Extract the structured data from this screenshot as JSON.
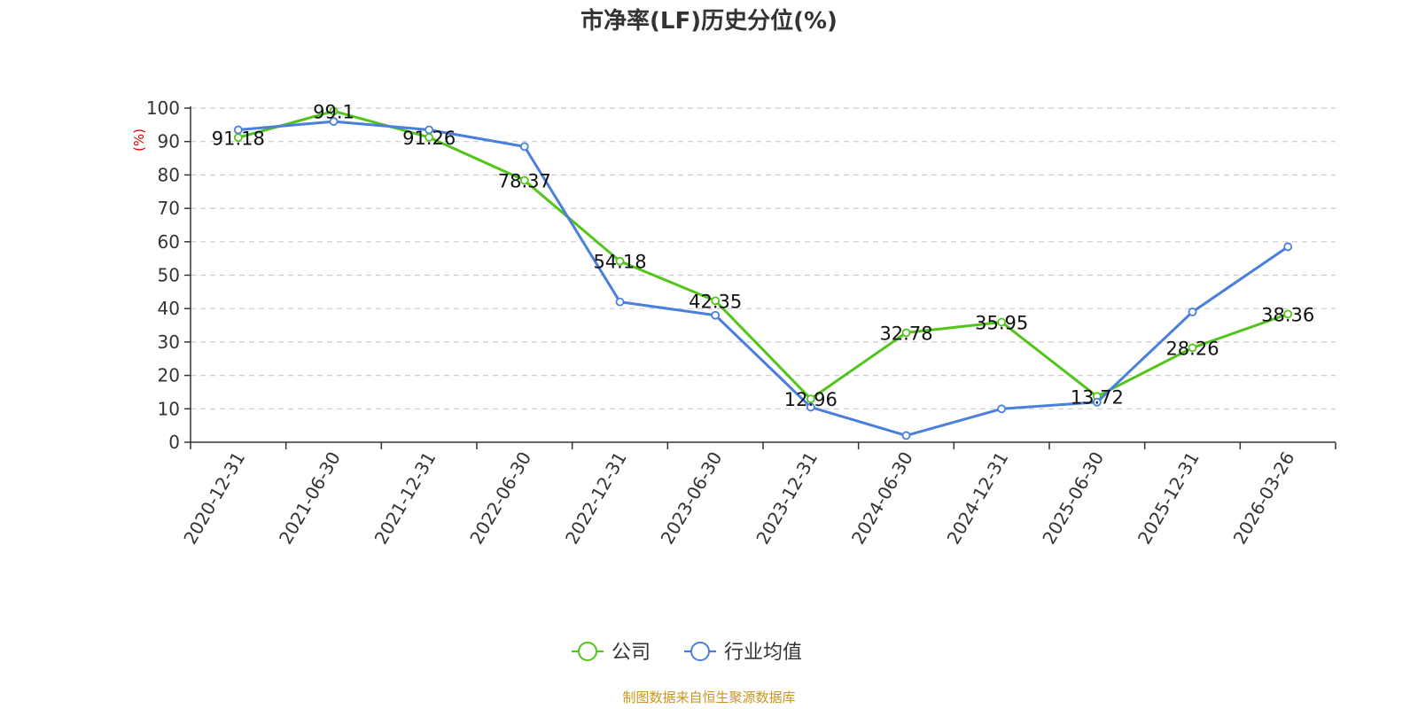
{
  "chart_data": {
    "type": "line",
    "title": "市净率(LF)历史分位(%)",
    "ylabel": "(%)",
    "ylim": [
      0,
      100
    ],
    "yticks": [
      0,
      10,
      20,
      30,
      40,
      50,
      60,
      70,
      80,
      90,
      100
    ],
    "categories": [
      "2020-12-31",
      "2021-06-30",
      "2021-12-31",
      "2022-06-30",
      "2022-12-31",
      "2023-06-30",
      "2023-12-31",
      "2024-06-30",
      "2024-12-31",
      "2025-06-30",
      "2025-12-31",
      "2026-03-26"
    ],
    "grid": true,
    "legend_position": "bottom-center",
    "series": [
      {
        "name": "公司",
        "color": "#52c41a",
        "values": [
          91.18,
          99.1,
          91.26,
          78.37,
          54.18,
          42.35,
          12.96,
          32.78,
          35.95,
          13.72,
          28.26,
          38.36
        ],
        "labels": [
          "91.18",
          "99.1",
          "91.26",
          "78.37",
          "54.18",
          "42.35",
          "12.96",
          "32.78",
          "35.95",
          "13.72",
          "28.26",
          "38.36"
        ]
      },
      {
        "name": "行业均值",
        "color": "#4a7fdc",
        "values": [
          93.5,
          96.0,
          93.5,
          88.5,
          42.0,
          38.0,
          10.5,
          2.0,
          10.0,
          12.0,
          39.0,
          58.5
        ]
      }
    ],
    "source": "制图数据来自恒生聚源数据库",
    "source_color": "#c8961e",
    "ylabel_color": "#e00000"
  }
}
